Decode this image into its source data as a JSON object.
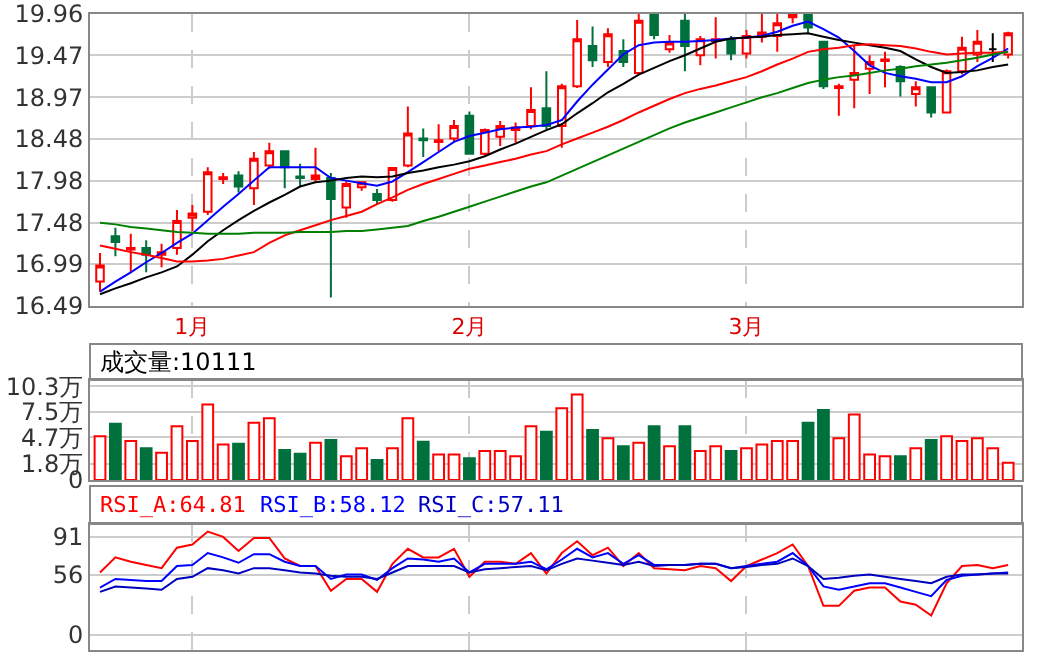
{
  "chart_data": [
    {
      "type": "candlestick",
      "categories": [
        null,
        null,
        null,
        null,
        null,
        null,
        "1月",
        null,
        null,
        null,
        null,
        null,
        null,
        null,
        null,
        null,
        null,
        null,
        null,
        null,
        null,
        null,
        null,
        null,
        "2月",
        null,
        null,
        null,
        null,
        null,
        null,
        null,
        null,
        null,
        null,
        null,
        null,
        null,
        null,
        null,
        null,
        null,
        "3月",
        null,
        null,
        null,
        null,
        null,
        null,
        null,
        null,
        null,
        null,
        null,
        null,
        null,
        null,
        null,
        null,
        null
      ],
      "ohlc": [
        [
          16.78,
          17.12,
          16.66,
          16.97
        ],
        [
          17.32,
          17.42,
          17.08,
          17.25
        ],
        [
          17.16,
          17.35,
          16.89,
          17.18
        ],
        [
          17.18,
          17.27,
          16.89,
          17.1
        ],
        [
          17.1,
          17.23,
          16.95,
          17.13
        ],
        [
          17.18,
          17.63,
          17.1,
          17.5
        ],
        [
          17.54,
          17.69,
          17.38,
          17.59
        ],
        [
          17.61,
          18.14,
          17.57,
          18.08
        ],
        [
          18.0,
          18.07,
          17.94,
          18.02
        ],
        [
          18.04,
          18.09,
          17.84,
          17.91
        ],
        [
          17.89,
          18.32,
          17.69,
          18.24
        ],
        [
          18.16,
          18.43,
          18.12,
          18.33
        ],
        [
          18.33,
          18.33,
          17.89,
          18.14
        ],
        [
          18.03,
          18.18,
          17.91,
          18.01
        ],
        [
          18.0,
          18.37,
          17.97,
          18.04
        ],
        [
          18.01,
          18.07,
          16.59,
          17.76
        ],
        [
          17.66,
          17.97,
          17.54,
          17.94
        ],
        [
          17.9,
          17.97,
          17.86,
          17.96
        ],
        [
          17.82,
          17.88,
          17.69,
          17.75
        ],
        [
          17.75,
          18.14,
          17.73,
          18.13
        ],
        [
          18.16,
          18.86,
          18.14,
          18.54
        ],
        [
          18.48,
          18.6,
          18.26,
          18.46
        ],
        [
          18.44,
          18.65,
          18.33,
          18.46
        ],
        [
          18.48,
          18.7,
          18.44,
          18.63
        ],
        [
          18.75,
          18.8,
          18.3,
          18.3
        ],
        [
          18.3,
          18.6,
          18.28,
          18.58
        ],
        [
          18.5,
          18.69,
          18.39,
          18.63
        ],
        [
          18.58,
          18.67,
          18.43,
          18.61
        ],
        [
          18.63,
          19.09,
          18.59,
          18.82
        ],
        [
          18.84,
          19.28,
          18.59,
          18.63
        ],
        [
          18.63,
          19.13,
          18.37,
          19.1
        ],
        [
          19.1,
          19.89,
          19.08,
          19.66
        ],
        [
          19.58,
          19.81,
          19.33,
          19.41
        ],
        [
          19.39,
          19.79,
          19.33,
          19.72
        ],
        [
          19.52,
          19.66,
          19.33,
          19.39
        ],
        [
          19.26,
          19.96,
          19.24,
          19.88
        ],
        [
          19.95,
          19.96,
          19.66,
          19.71
        ],
        [
          19.54,
          19.71,
          19.5,
          19.62
        ],
        [
          19.88,
          19.96,
          19.28,
          19.58
        ],
        [
          19.47,
          19.7,
          19.35,
          19.66
        ],
        [
          19.64,
          19.92,
          19.43,
          19.66
        ],
        [
          19.66,
          19.7,
          19.41,
          19.49
        ],
        [
          19.49,
          19.77,
          19.43,
          19.7
        ],
        [
          19.69,
          19.96,
          19.62,
          19.74
        ],
        [
          19.7,
          19.96,
          19.51,
          19.85
        ],
        [
          19.92,
          19.96,
          19.85,
          19.96
        ],
        [
          19.96,
          19.96,
          19.72,
          19.8
        ],
        [
          19.63,
          19.63,
          19.07,
          19.1
        ],
        [
          19.08,
          19.13,
          18.75,
          19.1
        ],
        [
          19.18,
          19.58,
          18.84,
          19.26
        ],
        [
          19.31,
          19.47,
          19.01,
          19.39
        ],
        [
          19.4,
          19.51,
          19.09,
          19.42
        ],
        [
          19.33,
          19.35,
          18.98,
          19.16
        ],
        [
          19.01,
          19.16,
          18.86,
          19.09
        ],
        [
          19.09,
          19.1,
          18.73,
          18.79
        ],
        [
          18.79,
          19.3,
          18.79,
          19.28
        ],
        [
          19.28,
          19.69,
          19.24,
          19.56
        ],
        [
          19.48,
          19.77,
          19.39,
          19.63
        ],
        [
          19.54,
          19.73,
          19.39,
          19.54
        ],
        [
          19.48,
          19.75,
          19.43,
          19.73
        ]
      ],
      "colors": [
        "#ff0000",
        "#00703c",
        "#ff0000",
        "#00703c",
        "#ff0000",
        "#ff0000",
        "#ff0000",
        "#ff0000",
        "#ff0000",
        "#00703c",
        "#ff0000",
        "#ff0000",
        "#00703c",
        "#00703c",
        "#ff0000",
        "#00703c",
        "#ff0000",
        "#ff0000",
        "#00703c",
        "#ff0000",
        "#ff0000",
        "#00703c",
        "#ff0000",
        "#ff0000",
        "#00703c",
        "#ff0000",
        "#ff0000",
        "#ff0000",
        "#ff0000",
        "#00703c",
        "#ff0000",
        "#ff0000",
        "#00703c",
        "#ff0000",
        "#00703c",
        "#ff0000",
        "#00703c",
        "#ff0000",
        "#00703c",
        "#ff0000",
        "#ff0000",
        "#00703c",
        "#ff0000",
        "#ff0000",
        "#ff0000",
        "#ff0000",
        "#00703c",
        "#00703c",
        "#ff0000",
        "#ff0000",
        "#ff0000",
        "#ff0000",
        "#00703c",
        "#ff0000",
        "#00703c",
        "#ff0000",
        "#ff0000",
        "#ff0000",
        "#000000",
        "#ff0000"
      ],
      "series": [
        {
          "type": "line",
          "color": "#0000ff",
          "values": [
            16.66,
            16.78,
            16.89,
            17.01,
            17.12,
            17.24,
            17.35,
            17.51,
            17.67,
            17.82,
            17.98,
            18.14,
            18.14,
            18.14,
            18.14,
            18.01,
            17.98,
            17.95,
            17.92,
            17.97,
            18.08,
            18.2,
            18.32,
            18.44,
            18.51,
            18.55,
            18.59,
            18.61,
            18.62,
            18.64,
            18.7,
            18.92,
            19.12,
            19.3,
            19.48,
            19.59,
            19.62,
            19.63,
            19.63,
            19.64,
            19.65,
            19.67,
            19.68,
            19.7,
            19.75,
            19.82,
            19.87,
            19.78,
            19.68,
            19.52,
            19.35,
            19.26,
            19.22,
            19.19,
            19.15,
            19.15,
            19.22,
            19.34,
            19.44,
            19.55
          ]
        },
        {
          "type": "line",
          "color": "#000000",
          "values": [
            16.63,
            16.7,
            16.76,
            16.83,
            16.89,
            16.96,
            17.1,
            17.26,
            17.39,
            17.51,
            17.62,
            17.72,
            17.81,
            17.91,
            17.96,
            17.98,
            18.01,
            18.03,
            18.02,
            18.03,
            18.07,
            18.1,
            18.14,
            18.17,
            18.21,
            18.27,
            18.35,
            18.42,
            18.5,
            18.58,
            18.65,
            18.78,
            18.9,
            19.03,
            19.13,
            19.24,
            19.32,
            19.4,
            19.47,
            19.55,
            19.63,
            19.67,
            19.68,
            19.69,
            19.71,
            19.72,
            19.73,
            19.69,
            19.65,
            19.62,
            19.59,
            19.56,
            19.52,
            19.42,
            19.33,
            19.26,
            19.27,
            19.29,
            19.33,
            19.36
          ]
        },
        {
          "type": "line",
          "color": "#ff0000",
          "values": [
            17.21,
            17.17,
            17.13,
            17.1,
            17.06,
            17.02,
            17.02,
            17.03,
            17.05,
            17.09,
            17.13,
            17.24,
            17.33,
            17.39,
            17.45,
            17.51,
            17.56,
            17.61,
            17.7,
            17.78,
            17.87,
            17.94,
            18.0,
            18.06,
            18.12,
            18.16,
            18.2,
            18.24,
            18.29,
            18.33,
            18.41,
            18.48,
            18.55,
            18.62,
            18.7,
            18.79,
            18.87,
            18.95,
            19.02,
            19.07,
            19.11,
            19.16,
            19.21,
            19.28,
            19.36,
            19.43,
            19.51,
            19.54,
            19.56,
            19.59,
            19.6,
            19.59,
            19.58,
            19.55,
            19.51,
            19.48,
            19.49,
            19.5,
            19.5,
            19.51
          ]
        },
        {
          "type": "line",
          "color": "#008000",
          "values": [
            17.48,
            17.46,
            17.43,
            17.41,
            17.39,
            17.37,
            17.36,
            17.35,
            17.35,
            17.35,
            17.36,
            17.36,
            17.36,
            17.37,
            17.37,
            17.37,
            17.38,
            17.38,
            17.4,
            17.42,
            17.44,
            17.5,
            17.55,
            17.61,
            17.67,
            17.73,
            17.79,
            17.85,
            17.91,
            17.96,
            18.04,
            18.12,
            18.2,
            18.28,
            18.36,
            18.44,
            18.52,
            18.6,
            18.67,
            18.73,
            18.79,
            18.85,
            18.91,
            18.97,
            19.02,
            19.08,
            19.14,
            19.18,
            19.21,
            19.23,
            19.26,
            19.29,
            19.31,
            19.34,
            19.36,
            19.38,
            19.41,
            19.44,
            19.48,
            19.51
          ]
        }
      ],
      "ylim": [
        16.49,
        19.96
      ],
      "yticks": [
        16.49,
        16.99,
        17.48,
        17.98,
        18.48,
        18.97,
        19.47,
        19.96
      ],
      "grid": true
    },
    {
      "type": "bar",
      "title": "成交量:10111",
      "categories": [
        null,
        null,
        null,
        null,
        null,
        null,
        null,
        null,
        null,
        null,
        null,
        null,
        null,
        null,
        null,
        null,
        null,
        null,
        null,
        null,
        null,
        null,
        null,
        null,
        null,
        null,
        null,
        null,
        null,
        null,
        null,
        null,
        null,
        null,
        null,
        null,
        null,
        null,
        null,
        null,
        null,
        null,
        null,
        null,
        null,
        null,
        null,
        null,
        null,
        null,
        null,
        null,
        null,
        null,
        null,
        null,
        null,
        null,
        null,
        null
      ],
      "values": [
        4.8,
        6.2,
        4.3,
        3.5,
        3.0,
        5.9,
        4.3,
        8.3,
        3.9,
        4.0,
        6.3,
        6.8,
        3.3,
        2.9,
        4.1,
        4.4,
        2.6,
        3.5,
        2.2,
        3.5,
        6.8,
        4.2,
        2.8,
        2.8,
        2.4,
        3.2,
        3.2,
        2.6,
        5.9,
        5.3,
        7.9,
        9.4,
        5.5,
        4.6,
        3.7,
        4.1,
        5.9,
        3.7,
        5.9,
        3.2,
        3.7,
        3.2,
        3.5,
        3.9,
        4.3,
        4.3,
        6.3,
        7.7,
        4.6,
        7.2,
        2.8,
        2.6,
        2.6,
        3.5,
        4.4,
        4.8,
        4.3,
        4.6,
        3.5,
        1.9
      ],
      "colors": [
        "#ff0000",
        "#00703c",
        "#ff0000",
        "#00703c",
        "#ff0000",
        "#ff0000",
        "#ff0000",
        "#ff0000",
        "#ff0000",
        "#00703c",
        "#ff0000",
        "#ff0000",
        "#00703c",
        "#00703c",
        "#ff0000",
        "#00703c",
        "#ff0000",
        "#ff0000",
        "#00703c",
        "#ff0000",
        "#ff0000",
        "#00703c",
        "#ff0000",
        "#ff0000",
        "#00703c",
        "#ff0000",
        "#ff0000",
        "#ff0000",
        "#ff0000",
        "#00703c",
        "#ff0000",
        "#ff0000",
        "#00703c",
        "#ff0000",
        "#00703c",
        "#ff0000",
        "#00703c",
        "#ff0000",
        "#00703c",
        "#ff0000",
        "#ff0000",
        "#00703c",
        "#ff0000",
        "#ff0000",
        "#ff0000",
        "#ff0000",
        "#00703c",
        "#00703c",
        "#ff0000",
        "#ff0000",
        "#ff0000",
        "#ff0000",
        "#00703c",
        "#ff0000",
        "#00703c",
        "#ff0000",
        "#ff0000",
        "#ff0000",
        "#ff0000",
        "#ff0000"
      ],
      "ylim": [
        0,
        11
      ],
      "yticks": [
        0,
        {
          "value": 1.8,
          "label": "1.8万"
        },
        {
          "value": 4.7,
          "label": "4.7万"
        },
        {
          "value": 7.5,
          "label": "7.5万"
        },
        {
          "value": 10.3,
          "label": "10.3万"
        }
      ],
      "grid": true,
      "tick_labels": "y"
    },
    {
      "type": "line",
      "legend": "top left",
      "categories": [
        null,
        null,
        null,
        null,
        null,
        null,
        null,
        null,
        null,
        null,
        null,
        null,
        null,
        null,
        null,
        null,
        null,
        null,
        null,
        null,
        null,
        null,
        null,
        null,
        null,
        null,
        null,
        null,
        null,
        null,
        null,
        null,
        null,
        null,
        null,
        null,
        null,
        null,
        null,
        null,
        null,
        null,
        null,
        null,
        null,
        null,
        null,
        null,
        null,
        null,
        null,
        null,
        null,
        null,
        null,
        null,
        null,
        null,
        null,
        null
      ],
      "series": [
        {
          "name": "RSI_A:64.81",
          "color": "#ff0000",
          "values": [
            58,
            72,
            68,
            65,
            62,
            81,
            84,
            96,
            91,
            78,
            90,
            90,
            71,
            64,
            64,
            41,
            52,
            52,
            40,
            66,
            80,
            72,
            72,
            80,
            54,
            68,
            68,
            66,
            76,
            57,
            76,
            87,
            74,
            81,
            64,
            76,
            62,
            61,
            60,
            64,
            62,
            50,
            64,
            70,
            76,
            84,
            64,
            27,
            27,
            41,
            44,
            44,
            31,
            28,
            18,
            48,
            64,
            65,
            62,
            65
          ]
        },
        {
          "name": "RSI_B:58.12",
          "color": "#0000ff",
          "values": [
            44,
            52,
            51,
            50,
            50,
            64,
            65,
            76,
            72,
            67,
            75,
            75,
            68,
            64,
            64,
            52,
            56,
            56,
            51,
            62,
            71,
            70,
            68,
            71,
            58,
            66,
            66,
            66,
            68,
            61,
            70,
            80,
            72,
            76,
            66,
            74,
            65,
            65,
            65,
            66,
            66,
            62,
            64,
            66,
            68,
            76,
            64,
            45,
            42,
            45,
            48,
            48,
            44,
            40,
            36,
            51,
            55,
            56,
            57,
            58
          ]
        },
        {
          "name": "RSI_C:57.11",
          "color": "#0000c0",
          "values": [
            40,
            45,
            44,
            43,
            42,
            52,
            54,
            62,
            60,
            57,
            62,
            62,
            60,
            58,
            57,
            55,
            54,
            54,
            52,
            58,
            64,
            64,
            64,
            64,
            58,
            61,
            62,
            63,
            64,
            60,
            66,
            71,
            69,
            67,
            65,
            68,
            64,
            65,
            65,
            66,
            66,
            62,
            63,
            65,
            66,
            71,
            64,
            52,
            53,
            55,
            56,
            54,
            52,
            50,
            48,
            54,
            56,
            56,
            57,
            57
          ]
        }
      ],
      "ylim": [
        -14,
        103
      ],
      "yticks": [
        0,
        56,
        91
      ],
      "grid": true,
      "tick_labels": "y"
    }
  ]
}
